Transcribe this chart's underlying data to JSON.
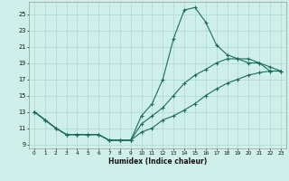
{
  "xlabel": "Humidex (Indice chaleur)",
  "bg_color": "#cff0ea",
  "grid_color": "#aad8d0",
  "line_color": "#1a6b5a",
  "xlim": [
    -0.5,
    23.5
  ],
  "ylim": [
    8.5,
    26.5
  ],
  "yticks": [
    9,
    11,
    13,
    15,
    17,
    19,
    21,
    23,
    25
  ],
  "xticks": [
    0,
    1,
    2,
    3,
    4,
    5,
    6,
    7,
    8,
    9,
    10,
    11,
    12,
    13,
    14,
    15,
    16,
    17,
    18,
    19,
    20,
    21,
    22,
    23
  ],
  "line_min_x": [
    0,
    1,
    2,
    3,
    4,
    5,
    6,
    7,
    8,
    9,
    10,
    11,
    12,
    13,
    14,
    15,
    16,
    17,
    18,
    19,
    20,
    21,
    22,
    23
  ],
  "line_min_y": [
    13,
    12,
    11,
    10.2,
    10.2,
    10.2,
    10.2,
    9.5,
    9.5,
    9.5,
    10.5,
    11,
    12,
    12.5,
    13.2,
    14,
    15,
    15.8,
    16.5,
    17,
    17.5,
    17.8,
    18,
    18
  ],
  "line_max_x": [
    0,
    1,
    2,
    3,
    4,
    5,
    6,
    7,
    8,
    9,
    10,
    11,
    12,
    13,
    14,
    15,
    16,
    17,
    18,
    19,
    20,
    21,
    22,
    23
  ],
  "line_max_y": [
    13,
    12,
    11,
    10.2,
    10.2,
    10.2,
    10.2,
    9.5,
    9.5,
    9.5,
    12.5,
    14,
    17,
    22,
    25.5,
    25.8,
    24,
    21.2,
    20,
    19.5,
    19,
    19,
    18,
    18
  ],
  "line_avg_x": [
    0,
    1,
    2,
    3,
    4,
    5,
    6,
    7,
    8,
    9,
    10,
    11,
    12,
    13,
    14,
    15,
    16,
    17,
    18,
    19,
    20,
    21,
    22,
    23
  ],
  "line_avg_y": [
    13,
    12,
    11,
    10.2,
    10.2,
    10.2,
    10.2,
    9.5,
    9.5,
    9.5,
    11.5,
    12.5,
    13.5,
    15,
    16.5,
    17.5,
    18.2,
    19,
    19.5,
    19.5,
    19.5,
    19,
    18.5,
    18
  ]
}
